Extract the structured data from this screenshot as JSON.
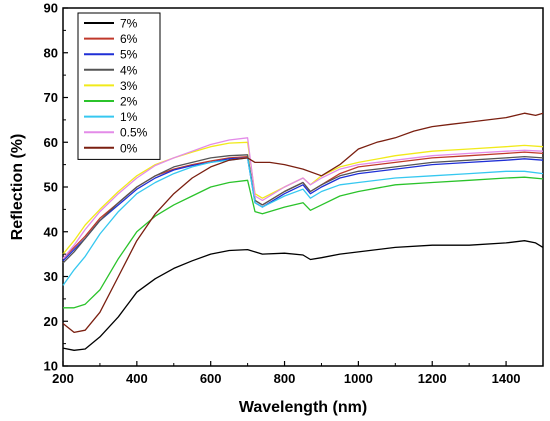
{
  "chart_data": {
    "type": "line",
    "xlabel": "Wavelength (nm)",
    "ylabel": "Reflection (%)",
    "xlim": [
      200,
      1500
    ],
    "ylim": [
      10,
      90
    ],
    "x_ticks": [
      200,
      400,
      600,
      800,
      1000,
      1200,
      1400
    ],
    "y_ticks": [
      10,
      20,
      30,
      40,
      50,
      60,
      70,
      80,
      90
    ],
    "grid": false,
    "legend_position": "top-left",
    "series": [
      {
        "name": "7%",
        "color": "#000000",
        "x": [
          200,
          230,
          260,
          300,
          350,
          400,
          450,
          500,
          550,
          600,
          650,
          700,
          720,
          740,
          800,
          850,
          870,
          900,
          950,
          1000,
          1100,
          1200,
          1300,
          1400,
          1450,
          1480,
          1500
        ],
        "y": [
          14.0,
          13.5,
          13.8,
          16.5,
          21.0,
          26.5,
          29.5,
          31.8,
          33.5,
          35.0,
          35.8,
          36.0,
          35.5,
          35.0,
          35.2,
          34.8,
          33.8,
          34.2,
          35.0,
          35.5,
          36.5,
          37.0,
          37.0,
          37.5,
          38.0,
          37.5,
          36.5
        ]
      },
      {
        "name": "6%",
        "color": "#c0392b",
        "x": [
          200,
          230,
          260,
          300,
          350,
          400,
          450,
          500,
          550,
          600,
          650,
          700,
          720,
          740,
          800,
          850,
          870,
          900,
          950,
          1000,
          1100,
          1200,
          1300,
          1400,
          1450,
          1500
        ],
        "y": [
          34.0,
          36.5,
          39.0,
          43.0,
          46.5,
          50.0,
          52.5,
          54.0,
          55.0,
          55.8,
          56.5,
          56.8,
          47.0,
          46.0,
          49.0,
          51.0,
          49.0,
          50.5,
          53.0,
          54.5,
          55.5,
          56.5,
          57.0,
          57.5,
          57.8,
          57.5
        ]
      },
      {
        "name": "5%",
        "color": "#1f2fd6",
        "x": [
          200,
          230,
          260,
          300,
          350,
          400,
          450,
          500,
          550,
          600,
          650,
          700,
          720,
          740,
          800,
          850,
          870,
          900,
          950,
          1000,
          1100,
          1200,
          1300,
          1400,
          1450,
          1500
        ],
        "y": [
          33.5,
          36.0,
          38.5,
          42.5,
          46.0,
          49.5,
          52.0,
          53.8,
          54.8,
          55.5,
          56.3,
          56.5,
          46.5,
          45.5,
          48.5,
          50.5,
          48.5,
          50.0,
          52.0,
          53.0,
          54.0,
          55.0,
          55.5,
          56.0,
          56.3,
          56.0
        ]
      },
      {
        "name": "4%",
        "color": "#555555",
        "x": [
          200,
          230,
          260,
          300,
          350,
          400,
          450,
          500,
          550,
          600,
          650,
          700,
          720,
          740,
          800,
          850,
          870,
          900,
          950,
          1000,
          1100,
          1200,
          1300,
          1400,
          1450,
          1500
        ],
        "y": [
          33.0,
          35.5,
          38.5,
          42.5,
          46.5,
          50.0,
          52.5,
          54.5,
          55.5,
          56.5,
          57.0,
          57.2,
          47.0,
          46.0,
          49.0,
          51.0,
          49.0,
          50.5,
          52.5,
          53.5,
          54.5,
          55.5,
          56.0,
          56.5,
          56.8,
          56.5
        ]
      },
      {
        "name": "3%",
        "color": "#f1ea1a",
        "x": [
          200,
          230,
          260,
          300,
          350,
          400,
          450,
          500,
          550,
          600,
          650,
          700,
          720,
          740,
          800,
          850,
          870,
          900,
          950,
          1000,
          1100,
          1200,
          1300,
          1400,
          1450,
          1500
        ],
        "y": [
          35.0,
          38.0,
          41.5,
          45.0,
          49.0,
          52.5,
          55.0,
          56.5,
          57.8,
          59.0,
          59.8,
          60.0,
          48.5,
          47.5,
          50.0,
          52.0,
          50.5,
          52.5,
          54.5,
          55.5,
          57.0,
          58.0,
          58.5,
          59.0,
          59.3,
          59.0
        ]
      },
      {
        "name": "2%",
        "color": "#2bc32b",
        "x": [
          200,
          230,
          260,
          300,
          350,
          400,
          450,
          500,
          550,
          600,
          650,
          700,
          720,
          740,
          800,
          850,
          870,
          900,
          950,
          1000,
          1100,
          1200,
          1300,
          1400,
          1450,
          1500
        ],
        "y": [
          23.0,
          23.0,
          23.8,
          27.0,
          34.0,
          40.0,
          43.5,
          46.0,
          48.0,
          50.0,
          51.0,
          51.5,
          44.5,
          44.0,
          45.5,
          46.5,
          44.8,
          46.0,
          48.0,
          49.0,
          50.5,
          51.0,
          51.5,
          52.0,
          52.2,
          51.8
        ]
      },
      {
        "name": "1%",
        "color": "#36c8f0",
        "x": [
          200,
          230,
          260,
          300,
          350,
          400,
          450,
          500,
          550,
          600,
          650,
          700,
          720,
          740,
          800,
          850,
          870,
          900,
          950,
          1000,
          1100,
          1200,
          1300,
          1400,
          1450,
          1500
        ],
        "y": [
          28.0,
          31.5,
          34.5,
          39.5,
          44.5,
          48.5,
          51.0,
          53.0,
          54.5,
          55.5,
          56.0,
          56.5,
          46.5,
          45.5,
          48.0,
          49.5,
          47.5,
          49.0,
          50.5,
          51.0,
          52.0,
          52.5,
          53.0,
          53.5,
          53.5,
          53.0
        ]
      },
      {
        "name": "0.5%",
        "color": "#e38be8",
        "x": [
          200,
          230,
          260,
          300,
          350,
          400,
          450,
          500,
          550,
          600,
          650,
          700,
          720,
          740,
          800,
          850,
          870,
          900,
          950,
          1000,
          1100,
          1200,
          1300,
          1400,
          1450,
          1500
        ],
        "y": [
          34.0,
          37.0,
          40.5,
          44.5,
          48.5,
          52.0,
          54.8,
          56.5,
          58.0,
          59.5,
          60.5,
          61.0,
          48.0,
          47.0,
          50.0,
          52.0,
          50.5,
          52.0,
          54.0,
          55.0,
          56.0,
          57.0,
          57.5,
          58.0,
          58.2,
          58.0
        ]
      },
      {
        "name": "0%",
        "color": "#7a1f10",
        "x": [
          200,
          230,
          260,
          300,
          350,
          400,
          450,
          500,
          550,
          600,
          650,
          700,
          720,
          760,
          800,
          850,
          900,
          950,
          1000,
          1050,
          1100,
          1150,
          1200,
          1250,
          1300,
          1350,
          1400,
          1450,
          1480,
          1500
        ],
        "y": [
          19.5,
          17.5,
          18.0,
          22.0,
          30.0,
          38.0,
          44.0,
          48.5,
          52.0,
          54.5,
          56.0,
          56.5,
          55.5,
          55.5,
          55.0,
          54.0,
          52.5,
          55.0,
          58.5,
          60.0,
          61.0,
          62.5,
          63.5,
          64.0,
          64.5,
          65.0,
          65.5,
          66.5,
          66.0,
          66.5
        ]
      }
    ]
  }
}
